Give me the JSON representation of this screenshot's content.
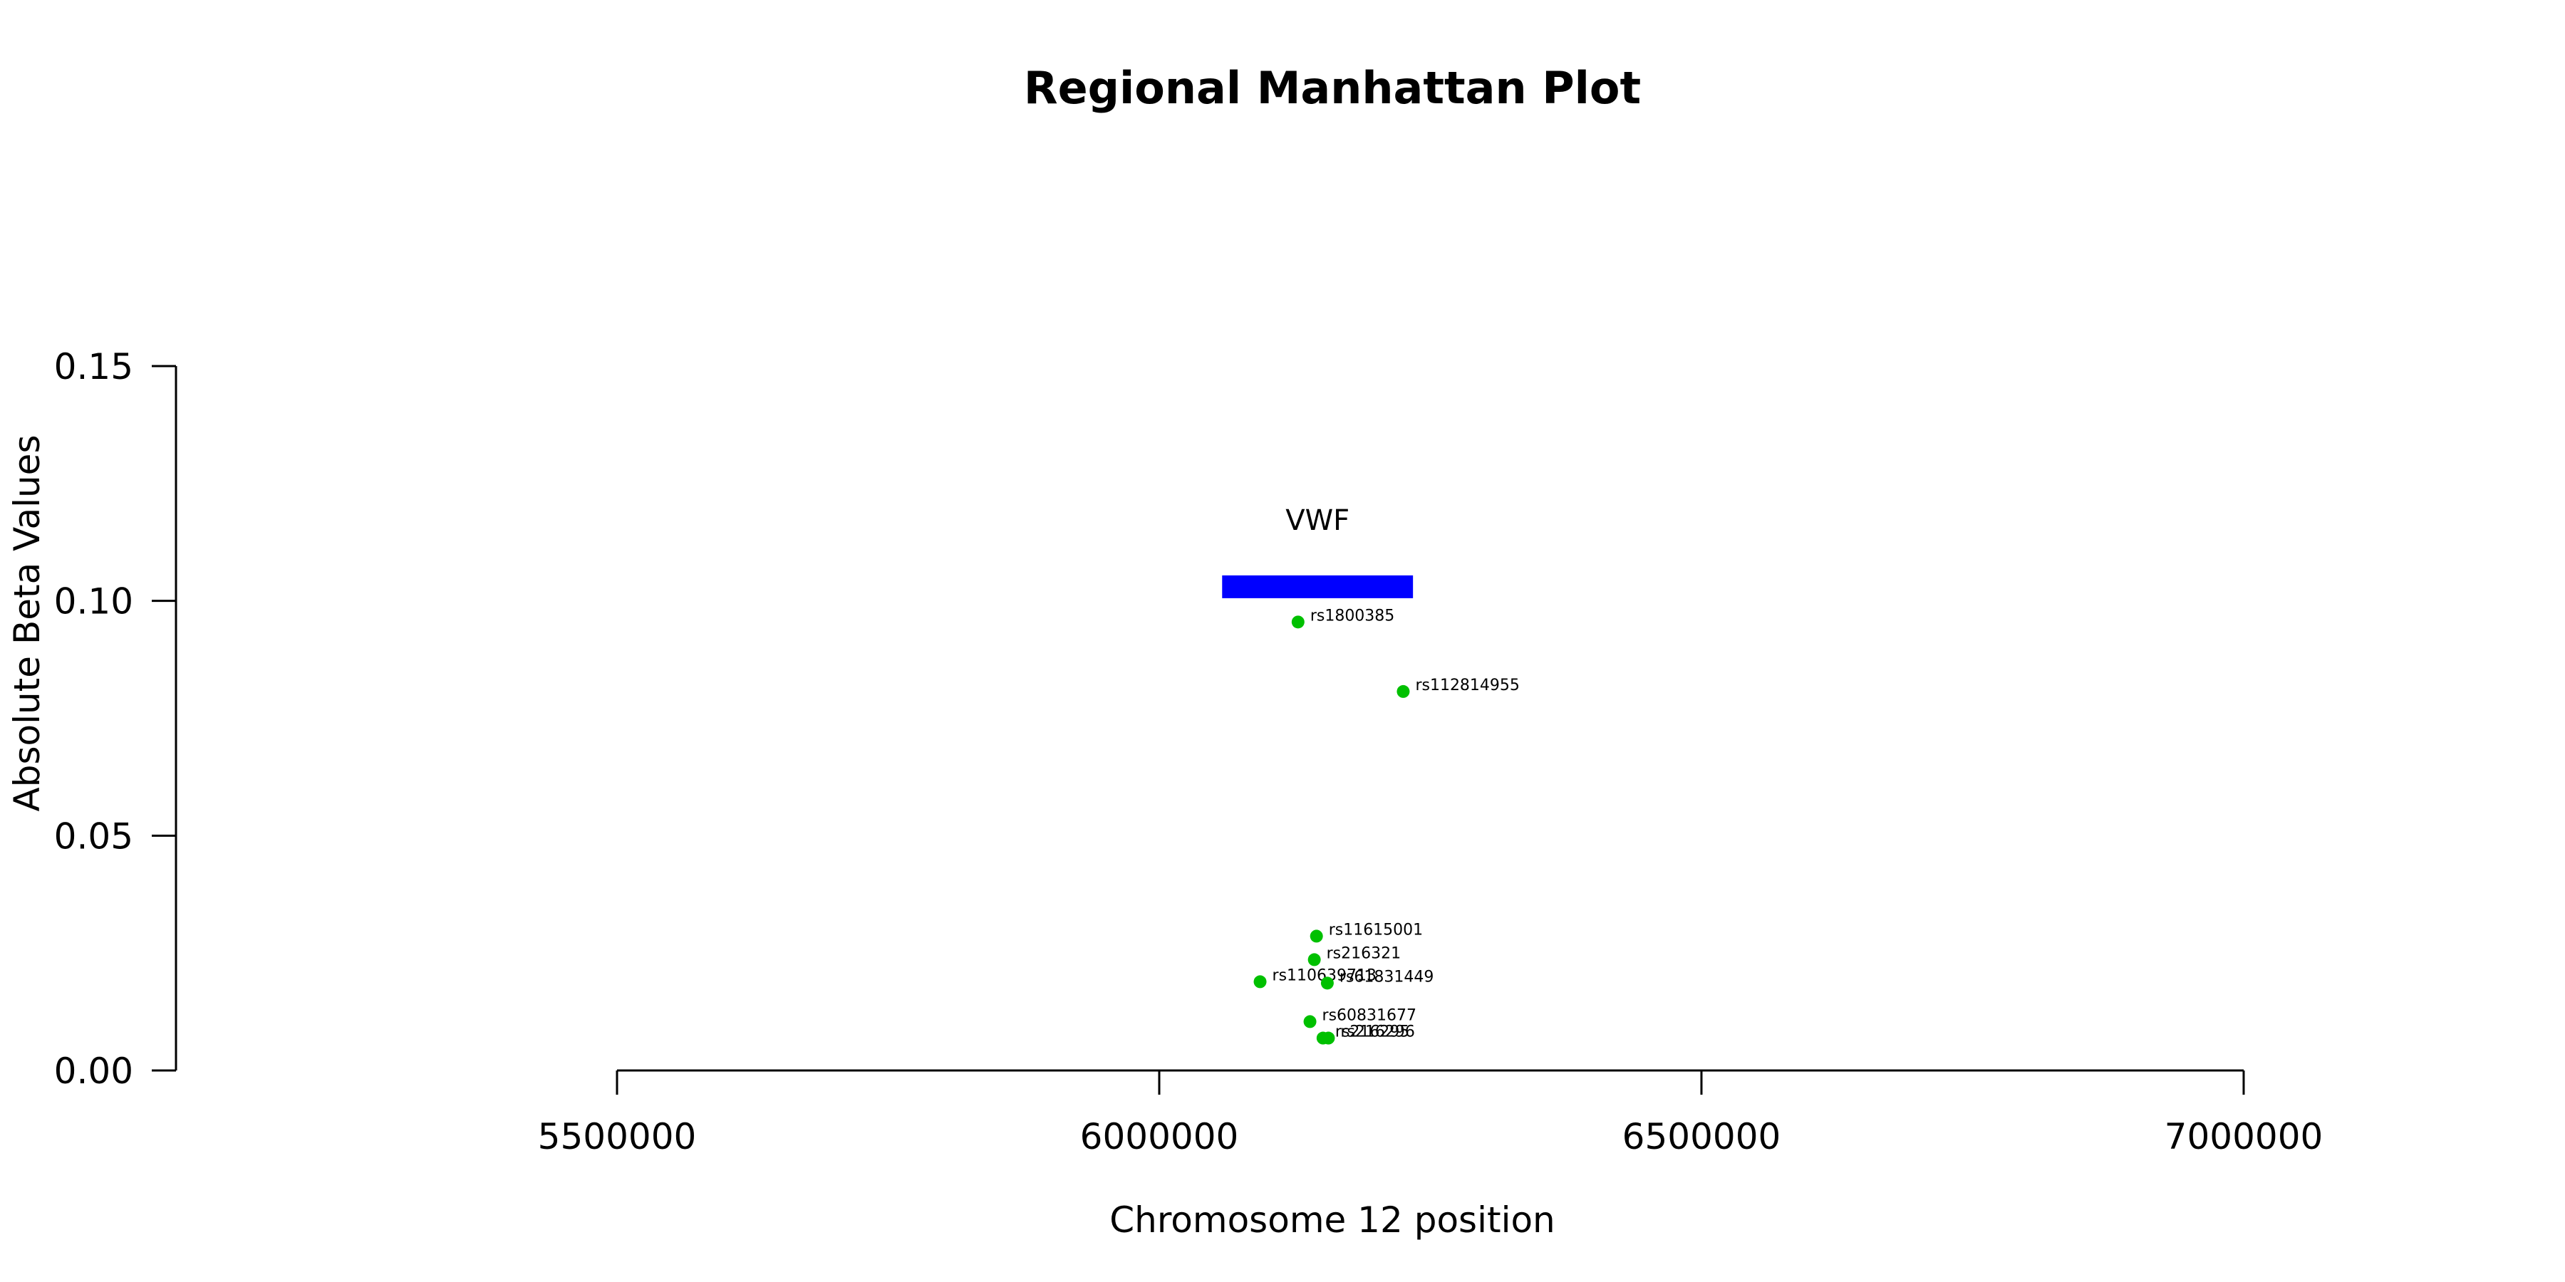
{
  "chart_data": {
    "type": "scatter",
    "title": "Regional Manhattan Plot",
    "xlabel": "Chromosome 12 position",
    "ylabel": "Absolute Beta Values",
    "xlim": [
      5500000,
      7000000
    ],
    "ylim": [
      0,
      0.15
    ],
    "xticks": [
      5500000,
      6000000,
      6500000,
      7000000
    ],
    "xtick_labels": [
      "5500000",
      "6000000",
      "6500000",
      "7000000"
    ],
    "yticks": [
      0,
      0.05,
      0.1,
      0.15
    ],
    "ytick_labels": [
      "0.00",
      "0.05",
      "0.10",
      "0.15"
    ],
    "point_color": "#00c000",
    "gene": {
      "name": "VWF",
      "start": 6058000,
      "end": 6234000,
      "y": 0.103,
      "color": "#0000ff"
    },
    "points": [
      {
        "label": "rs1800385",
        "x": 6128000,
        "y": 0.0955
      },
      {
        "label": "rs112814955",
        "x": 6225000,
        "y": 0.0807
      },
      {
        "label": "rs11615001",
        "x": 6145000,
        "y": 0.0286
      },
      {
        "label": "rs216321",
        "x": 6143000,
        "y": 0.0236
      },
      {
        "label": "rs110639713",
        "x": 6093000,
        "y": 0.0189
      },
      {
        "label": "rs61831449",
        "x": 6155000,
        "y": 0.0186
      },
      {
        "label": "rs60831677",
        "x": 6139000,
        "y": 0.0104
      },
      {
        "label": "rs216295",
        "x": 6151000,
        "y": 0.0069
      },
      {
        "label": "rs216296",
        "x": 6156000,
        "y": 0.0069
      }
    ]
  }
}
